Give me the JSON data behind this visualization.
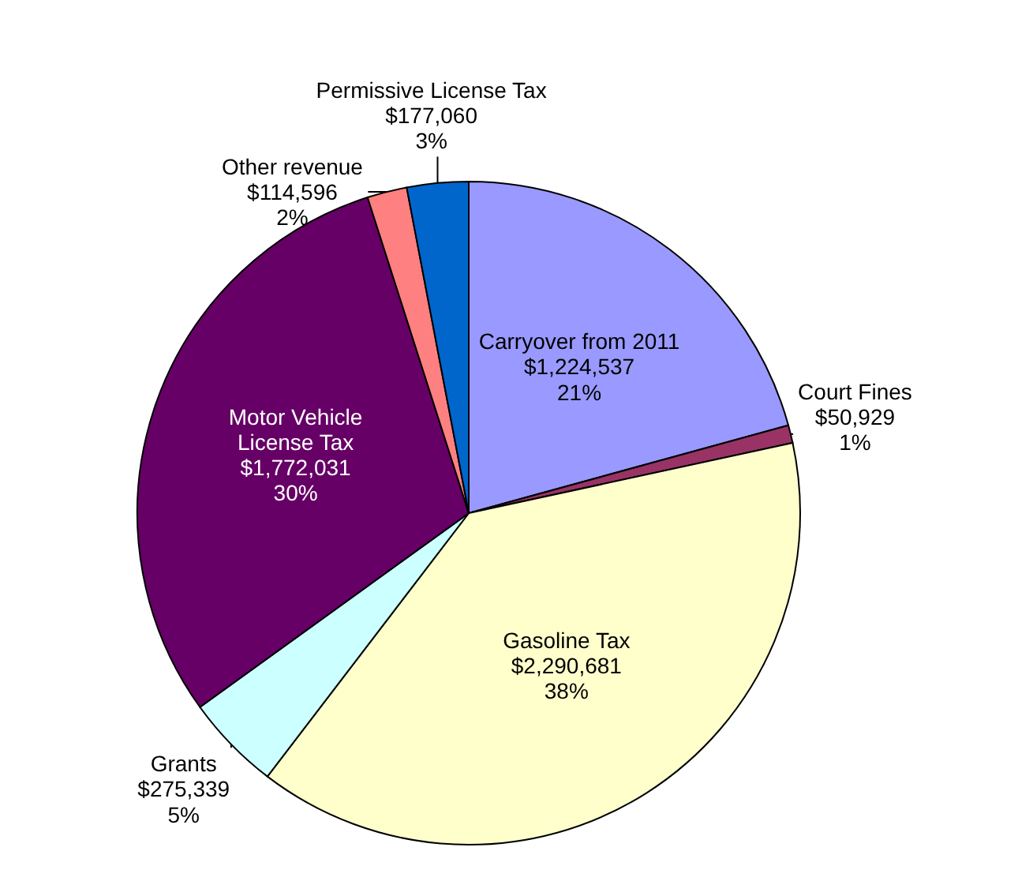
{
  "chart_data": {
    "type": "pie",
    "categories": [
      "Carryover from 2011",
      "Court Fines",
      "Gasoline Tax",
      "Grants",
      "Motor Vehicle\nLicense Tax",
      "Other revenue",
      "Permissive License Tax"
    ],
    "values": [
      1224537,
      50929,
      2290681,
      275339,
      1772031,
      114596,
      177060
    ],
    "value_labels": [
      "$1,224,537\n21%",
      "$50,929\n1%",
      "$2,290,681\n38%",
      "$275,339\n5%",
      "$1,772,031\n30%",
      "$114,596\n2%",
      "$177,060\n3%"
    ],
    "colors": [
      "#9999ff",
      "#993366",
      "#ffffcc",
      "#ccffff",
      "#660066",
      "#ff8080",
      "#0066cc"
    ],
    "legend": false
  }
}
